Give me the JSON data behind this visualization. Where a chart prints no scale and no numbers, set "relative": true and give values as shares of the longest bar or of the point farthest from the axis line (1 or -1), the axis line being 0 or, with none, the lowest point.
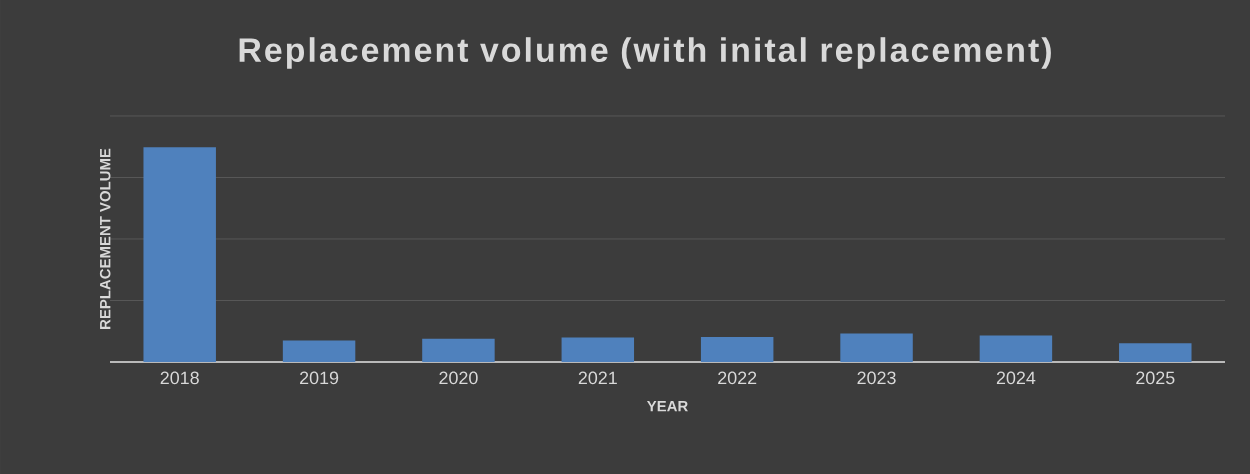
{
  "chart_data": {
    "type": "bar",
    "title": "Replacement volume (with inital replacement)",
    "xlabel": "YEAR",
    "ylabel": "REPLACEMENT VOLUME",
    "categories": [
      "2018",
      "2019",
      "2020",
      "2021",
      "2022",
      "2023",
      "2024",
      "2025"
    ],
    "values": [
      1,
      0.1,
      0.108,
      0.114,
      0.116,
      0.132,
      0.123,
      0.087
    ],
    "color": "#4f81bd",
    "relative": true,
    "grid": "y"
  }
}
